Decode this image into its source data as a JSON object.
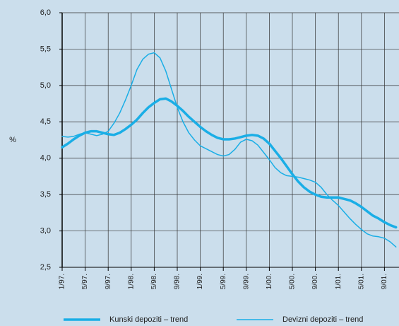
{
  "chart_data": {
    "type": "line",
    "y_label": "%",
    "categories": [
      "1/97.",
      null,
      null,
      null,
      "5/97.",
      null,
      null,
      null,
      "9/97.",
      null,
      null,
      null,
      "1/98.",
      null,
      null,
      null,
      "5/98.",
      null,
      null,
      null,
      "9/98.",
      null,
      null,
      null,
      "1/99.",
      null,
      null,
      null,
      "5/99.",
      null,
      null,
      null,
      "9/99.",
      null,
      null,
      null,
      "1/00.",
      null,
      null,
      null,
      "5/00.",
      null,
      null,
      null,
      "9/00.",
      null,
      null,
      null,
      "1/01.",
      null,
      null,
      null,
      "5/01.",
      null,
      null,
      null,
      "9/01.",
      null,
      null
    ],
    "series": [
      {
        "name": "Kunski depoziti – trend",
        "color": "#1aaee6",
        "width": 3.5,
        "values": [
          4.15,
          4.2,
          4.26,
          4.31,
          4.35,
          4.37,
          4.37,
          4.35,
          4.33,
          4.32,
          4.35,
          4.4,
          4.46,
          4.53,
          4.62,
          4.7,
          4.76,
          4.81,
          4.82,
          4.78,
          4.72,
          4.65,
          4.57,
          4.5,
          4.43,
          4.37,
          4.32,
          4.28,
          4.26,
          4.26,
          4.27,
          4.29,
          4.31,
          4.32,
          4.31,
          4.27,
          4.2,
          4.1,
          4.0,
          3.89,
          3.78,
          3.68,
          3.6,
          3.54,
          3.5,
          3.47,
          3.46,
          3.46,
          3.46,
          3.44,
          3.42,
          3.38,
          3.33,
          3.27,
          3.21,
          3.17,
          3.12,
          3.08,
          3.05
        ]
      },
      {
        "name": "Devizni depoziti – trend",
        "color": "#1aaee6",
        "width": 1.5,
        "values": [
          4.3,
          4.29,
          4.3,
          4.33,
          4.35,
          4.33,
          4.31,
          4.33,
          4.37,
          4.48,
          4.62,
          4.8,
          5.0,
          5.22,
          5.36,
          5.43,
          5.45,
          5.38,
          5.2,
          4.95,
          4.7,
          4.5,
          4.35,
          4.25,
          4.17,
          4.13,
          4.09,
          4.05,
          4.03,
          4.05,
          4.12,
          4.22,
          4.26,
          4.24,
          4.18,
          4.08,
          3.98,
          3.87,
          3.8,
          3.76,
          3.75,
          3.74,
          3.72,
          3.7,
          3.67,
          3.6,
          3.5,
          3.42,
          3.35,
          3.26,
          3.17,
          3.09,
          3.02,
          2.96,
          2.93,
          2.92,
          2.9,
          2.85,
          2.78
        ]
      }
    ],
    "ylim": [
      2.5,
      6
    ],
    "yticks": [
      {
        "value": 2.5,
        "label": "2,5"
      },
      {
        "value": 3,
        "label": "3,0"
      },
      {
        "value": 3.5,
        "label": "3,5"
      },
      {
        "value": 4,
        "label": "4,0"
      },
      {
        "value": 4.5,
        "label": "4,5"
      },
      {
        "value": 5,
        "label": "5,0"
      },
      {
        "value": 5.5,
        "label": "5,5"
      },
      {
        "value": 6,
        "label": "6,0"
      }
    ],
    "grid": true
  }
}
